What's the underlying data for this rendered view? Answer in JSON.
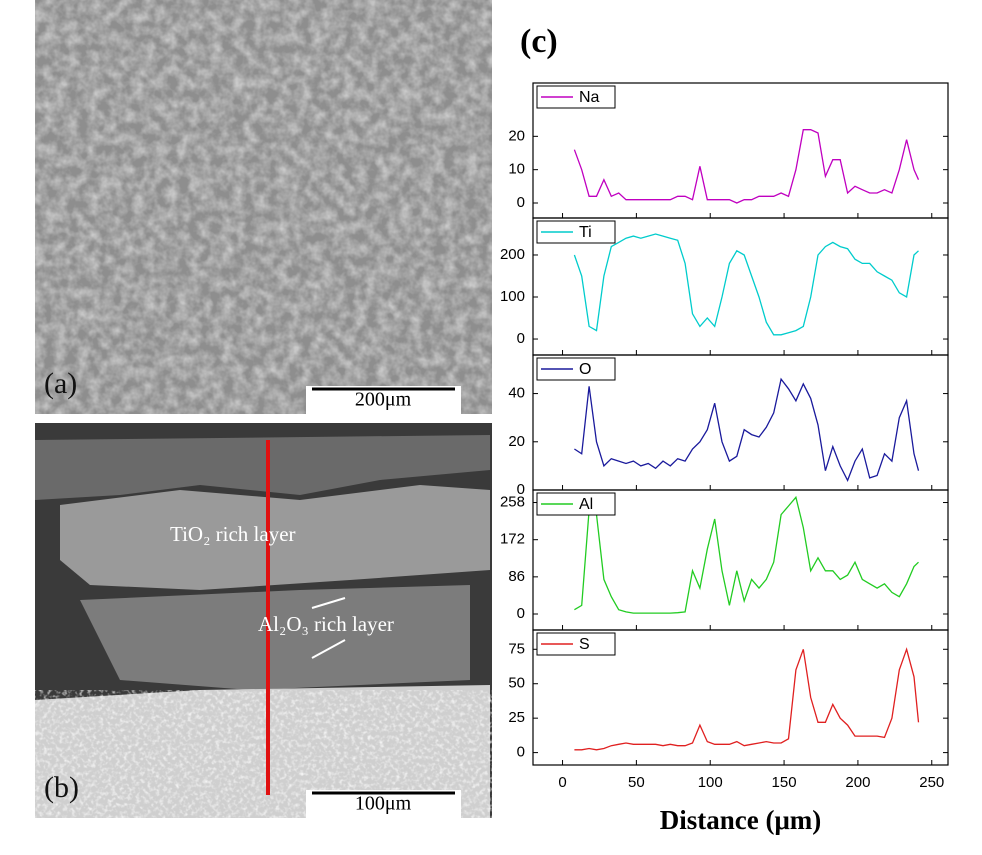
{
  "panels": {
    "a": {
      "label": "(a)",
      "scale_bar": "200μm"
    },
    "b": {
      "label": "(b)",
      "scale_bar": "100μm",
      "annotations": [
        "TiO₂ rich layer",
        "Al₂O₃ rich layer"
      ]
    },
    "c": {
      "label": "(c)"
    }
  },
  "chart_data": [
    {
      "type": "line",
      "xlim": [
        -20,
        261
      ],
      "ylim": [
        -4.5,
        36
      ],
      "yticks": [
        0,
        10,
        20
      ],
      "x": [
        8,
        13,
        18,
        23,
        28,
        33,
        38,
        43,
        48,
        53,
        58,
        63,
        68,
        73,
        78,
        83,
        88,
        93,
        98,
        103,
        108,
        113,
        118,
        123,
        128,
        133,
        138,
        143,
        148,
        153,
        158,
        163,
        168,
        173,
        178,
        183,
        188,
        193,
        198,
        203,
        208,
        213,
        218,
        223,
        228,
        233,
        238,
        241
      ],
      "series": [
        {
          "name": "Na",
          "color": "#c000c0",
          "values": [
            16,
            10,
            2,
            2,
            7,
            2,
            3,
            1,
            1,
            1,
            1,
            1,
            1,
            1,
            2,
            2,
            1,
            11,
            1,
            1,
            1,
            1,
            0,
            1,
            1,
            2,
            2,
            2,
            3,
            2,
            10,
            22,
            22,
            21,
            8,
            13,
            13,
            3,
            5,
            4,
            3,
            3,
            4,
            3,
            10,
            19,
            10,
            7
          ]
        }
      ]
    },
    {
      "type": "line",
      "xlim": [
        -20,
        261
      ],
      "ylim": [
        -38,
        288
      ],
      "yticks": [
        0,
        100,
        200
      ],
      "x": [
        8,
        13,
        18,
        23,
        28,
        33,
        38,
        43,
        48,
        53,
        58,
        63,
        68,
        73,
        78,
        83,
        88,
        93,
        98,
        103,
        108,
        113,
        118,
        123,
        128,
        133,
        138,
        143,
        148,
        153,
        158,
        163,
        168,
        173,
        178,
        183,
        188,
        193,
        198,
        203,
        208,
        213,
        218,
        223,
        228,
        233,
        238,
        241
      ],
      "series": [
        {
          "name": "Ti",
          "color": "#00cccc",
          "values": [
            200,
            150,
            30,
            20,
            150,
            220,
            230,
            240,
            245,
            240,
            245,
            250,
            245,
            240,
            235,
            180,
            60,
            30,
            50,
            30,
            100,
            180,
            210,
            200,
            150,
            100,
            40,
            10,
            10,
            15,
            20,
            30,
            100,
            200,
            220,
            230,
            220,
            215,
            190,
            180,
            180,
            160,
            150,
            140,
            110,
            100,
            200,
            210
          ]
        }
      ]
    },
    {
      "type": "line",
      "xlim": [
        -20,
        261
      ],
      "ylim": [
        0,
        56
      ],
      "yticks": [
        0,
        20,
        40
      ],
      "x": [
        8,
        13,
        18,
        23,
        28,
        33,
        38,
        43,
        48,
        53,
        58,
        63,
        68,
        73,
        78,
        83,
        88,
        93,
        98,
        103,
        108,
        113,
        118,
        123,
        128,
        133,
        138,
        143,
        148,
        153,
        158,
        163,
        168,
        173,
        178,
        183,
        188,
        193,
        198,
        203,
        208,
        213,
        218,
        223,
        228,
        233,
        238,
        241
      ],
      "series": [
        {
          "name": "O",
          "color": "#1a1a9c",
          "values": [
            17,
            15,
            43,
            20,
            10,
            13,
            12,
            11,
            12,
            10,
            11,
            9,
            12,
            10,
            13,
            12,
            17,
            20,
            25,
            36,
            20,
            12,
            14,
            25,
            23,
            22,
            26,
            32,
            46,
            42,
            37,
            44,
            38,
            27,
            8,
            18,
            10,
            4,
            12,
            17,
            5,
            6,
            15,
            12,
            30,
            37,
            15,
            8
          ]
        }
      ]
    },
    {
      "type": "line",
      "xlim": [
        -20,
        261
      ],
      "ylim": [
        -37,
        287
      ],
      "yticks": [
        0,
        86,
        172,
        258
      ],
      "x": [
        8,
        13,
        18,
        23,
        28,
        33,
        38,
        43,
        48,
        53,
        58,
        63,
        68,
        73,
        78,
        83,
        88,
        93,
        98,
        103,
        108,
        113,
        118,
        123,
        128,
        133,
        138,
        143,
        148,
        153,
        158,
        163,
        168,
        173,
        178,
        183,
        188,
        193,
        198,
        203,
        208,
        213,
        218,
        223,
        228,
        233,
        238,
        241
      ],
      "series": [
        {
          "name": "Al",
          "color": "#22cc22",
          "values": [
            10,
            20,
            240,
            230,
            80,
            40,
            10,
            5,
            2,
            2,
            2,
            2,
            2,
            2,
            3,
            5,
            100,
            60,
            150,
            220,
            100,
            20,
            100,
            30,
            80,
            60,
            80,
            120,
            230,
            250,
            270,
            200,
            100,
            130,
            100,
            100,
            80,
            90,
            120,
            80,
            70,
            60,
            70,
            50,
            40,
            70,
            110,
            120
          ]
        }
      ]
    },
    {
      "type": "line",
      "xlim": [
        -20,
        261
      ],
      "ylim": [
        -9,
        89
      ],
      "yticks": [
        0,
        25,
        50,
        75
      ],
      "xticks": [
        0,
        50,
        100,
        150,
        200,
        250
      ],
      "xlabel": "Distance (μm)",
      "x": [
        8,
        13,
        18,
        23,
        28,
        33,
        38,
        43,
        48,
        53,
        58,
        63,
        68,
        73,
        78,
        83,
        88,
        93,
        98,
        103,
        108,
        113,
        118,
        123,
        128,
        133,
        138,
        143,
        148,
        153,
        158,
        163,
        168,
        173,
        178,
        183,
        188,
        193,
        198,
        203,
        208,
        213,
        218,
        223,
        228,
        233,
        238,
        241
      ],
      "series": [
        {
          "name": "S",
          "color": "#e02020",
          "values": [
            2,
            2,
            3,
            2,
            3,
            5,
            6,
            7,
            6,
            6,
            6,
            6,
            5,
            6,
            5,
            5,
            7,
            20,
            8,
            6,
            6,
            6,
            8,
            5,
            6,
            7,
            8,
            7,
            7,
            10,
            60,
            75,
            40,
            22,
            22,
            35,
            25,
            20,
            12,
            12,
            12,
            12,
            11,
            25,
            60,
            75,
            55,
            22
          ]
        }
      ]
    }
  ]
}
